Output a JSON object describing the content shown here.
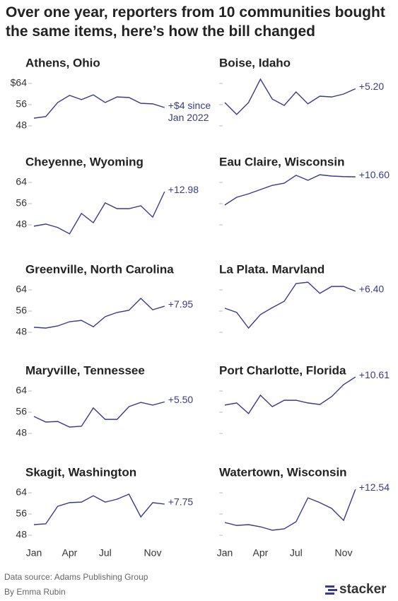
{
  "title": "Over one year, reporters from 10 communities bought the same items, here’s how the bill changed",
  "source": "Data source: Adams Publishing Group",
  "byline": "By Emma Rubin",
  "brand": "stacker",
  "line_color": "#3a3a8c",
  "chart_data": [
    {
      "type": "line",
      "title": "Athens, Ohio",
      "values": [
        50.9,
        51.5,
        56.8,
        59.5,
        57.9,
        59.7,
        56.8,
        58.9,
        58.7,
        56.5,
        56.3,
        54.9
      ],
      "annotation": [
        "+$4 since",
        "Jan 2022"
      ],
      "ylim": [
        44,
        70
      ],
      "yticks": [
        {
          "value": 64,
          "label": "$64"
        },
        56,
        48
      ],
      "ytick_labels": true
    },
    {
      "type": "line",
      "title": "Boise, Idaho",
      "values": [
        56.8,
        52.3,
        56.8,
        65.6,
        58.1,
        55.7,
        60.8,
        56.3,
        59.2,
        58.9,
        60.0,
        62.0
      ],
      "annotation": [
        "+5.20"
      ],
      "ylim": [
        44,
        70
      ],
      "yticks": [
        64,
        56,
        48
      ],
      "ytick_labels": false
    },
    {
      "type": "line",
      "title": "Cheyenne, Wyoming",
      "values": [
        47.5,
        48.3,
        47.0,
        44.6,
        52.3,
        48.8,
        56.3,
        54.1,
        54.1,
        55.2,
        50.9,
        60.5
      ],
      "annotation": [
        "+12.98"
      ],
      "ylim": [
        44,
        70
      ],
      "yticks": [
        64,
        56,
        48
      ],
      "ytick_labels": true
    },
    {
      "type": "line",
      "title": "Eau Claire, Wisconsin",
      "values": [
        55.5,
        58.4,
        59.7,
        61.3,
        62.9,
        63.7,
        66.7,
        64.8,
        66.9,
        66.4,
        66.2,
        66.1
      ],
      "annotation": [
        "+10.60"
      ],
      "ylim": [
        44,
        70
      ],
      "yticks": [
        64,
        56,
        48
      ],
      "ytick_labels": false
    },
    {
      "type": "line",
      "title": "Greenville, North Carolina",
      "values": [
        49.9,
        49.6,
        50.4,
        52.0,
        52.5,
        50.1,
        53.9,
        55.5,
        56.3,
        60.8,
        56.5,
        57.85
      ],
      "annotation": [
        "+7.95"
      ],
      "ylim": [
        44,
        70
      ],
      "yticks": [
        64,
        56,
        48
      ],
      "ytick_labels": true
    },
    {
      "type": "line",
      "title": "La Plata. Marvland",
      "values": [
        57.1,
        55.5,
        49.6,
        54.7,
        57.3,
        59.7,
        66.4,
        66.9,
        62.7,
        65.3,
        65.3,
        63.5
      ],
      "annotation": [
        "+6.40"
      ],
      "ylim": [
        44,
        70
      ],
      "yticks": [
        64,
        56,
        48
      ],
      "ytick_labels": false
    },
    {
      "type": "line",
      "title": "Maryville, Tennessee",
      "values": [
        54.4,
        52.3,
        52.5,
        50.4,
        50.7,
        57.6,
        53.3,
        53.3,
        58.1,
        59.7,
        58.7,
        59.9
      ],
      "annotation": [
        "+5.50"
      ],
      "ylim": [
        44,
        70
      ],
      "yticks": [
        64,
        56,
        48
      ],
      "ytick_labels": true
    },
    {
      "type": "line",
      "title": "Port Charlotte, Florida",
      "values": [
        58.7,
        59.5,
        55.5,
        62.4,
        58.1,
        60.5,
        60.5,
        59.5,
        58.9,
        61.9,
        66.4,
        69.3
      ],
      "annotation": [
        "+10.61"
      ],
      "ylim": [
        44,
        70
      ],
      "yticks": [
        64,
        56,
        48
      ],
      "ytick_labels": false
    },
    {
      "type": "line",
      "title": "Skagit, Washington",
      "categories": [
        "Jan",
        null,
        null,
        "Apr",
        null,
        null,
        "Jul",
        null,
        null,
        null,
        "Nov",
        null
      ],
      "values": [
        52.0,
        52.3,
        58.9,
        60.3,
        60.5,
        62.9,
        60.5,
        61.6,
        63.5,
        54.9,
        60.3,
        59.75
      ],
      "annotation": [
        "+7.75"
      ],
      "ylim": [
        44,
        70
      ],
      "yticks": [
        64,
        56,
        48
      ],
      "ytick_labels": true
    },
    {
      "type": "line",
      "title": "Watertown, Wisconsin",
      "categories": [
        "Jan",
        null,
        null,
        "Apr",
        null,
        null,
        "Jul",
        null,
        null,
        null,
        "Nov",
        null
      ],
      "values": [
        52.8,
        51.7,
        52.0,
        51.2,
        49.9,
        50.4,
        53.1,
        62.1,
        60.3,
        58.1,
        53.6,
        65.3
      ],
      "annotation": [
        "+12.54"
      ],
      "ylim": [
        44,
        70
      ],
      "yticks": [
        64,
        56,
        48
      ],
      "ytick_labels": false
    }
  ]
}
